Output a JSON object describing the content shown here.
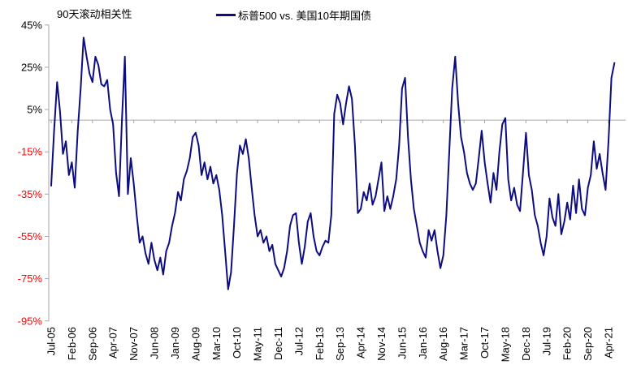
{
  "page": {
    "background": "#ffffff"
  },
  "chart_data": {
    "type": "line",
    "title": "90天滚动相关性",
    "legend": {
      "position": "top",
      "entries": [
        {
          "label": "标普500 vs. 美国10年期国债",
          "marker": "line",
          "color": "#0d0d80"
        }
      ]
    },
    "grid": "zero-line-only",
    "ylim": [
      -95,
      45
    ],
    "yticks": [
      45,
      25,
      5,
      -15,
      -35,
      -55,
      -75,
      -95
    ],
    "ytick_suffix": "%",
    "x_axis": {
      "start_month": "2005-07",
      "end_month": "2021-06",
      "frequency": "monthly",
      "tick_interval_months": 7,
      "tick_labels": [
        "Jul-05",
        "Feb-06",
        "Sep-06",
        "Apr-07",
        "Nov-07",
        "Jun-08",
        "Jan-09",
        "Aug-09",
        "Mar-10",
        "Oct-10",
        "May-11",
        "Dec-11",
        "Jul-12",
        "Feb-13",
        "Sep-13",
        "Apr-14",
        "Nov-14",
        "Jun-15",
        "Jan-16",
        "Aug-16",
        "Mar-17",
        "Oct-17",
        "May-18",
        "Dec-18",
        "Jul-19",
        "Feb-20",
        "Sep-20",
        "Apr-21"
      ]
    },
    "colors": {
      "line": "#0d0d80",
      "axis": "#a6a6a6",
      "positive_tick_label": "#000000",
      "negative_tick_label": "#ff0000",
      "x_tick_label": "#000000"
    },
    "series": [
      {
        "name": "标普500 vs. 美国10年期国债",
        "color": "#0d0d80",
        "unit": "percent",
        "values": [
          -31,
          -5,
          18,
          4,
          -16,
          -10,
          -26,
          -20,
          -32,
          -5,
          15,
          39,
          30,
          22,
          18,
          30,
          26,
          17,
          16,
          19,
          5,
          -2,
          -25,
          -36,
          0,
          30,
          -35,
          -18,
          -30,
          -45,
          -58,
          -55,
          -63,
          -68,
          -58,
          -66,
          -71,
          -65,
          -73,
          -62,
          -58,
          -50,
          -44,
          -34,
          -38,
          -28,
          -24,
          -18,
          -8,
          -6,
          -12,
          -26,
          -20,
          -28,
          -22,
          -30,
          -26,
          -33,
          -45,
          -62,
          -80,
          -72,
          -50,
          -25,
          -12,
          -16,
          -9,
          -18,
          -32,
          -45,
          -55,
          -52,
          -58,
          -55,
          -62,
          -59,
          -68,
          -71,
          -74,
          -70,
          -62,
          -50,
          -45,
          -44,
          -58,
          -68,
          -60,
          -48,
          -44,
          -55,
          -62,
          -64,
          -60,
          -57,
          -58,
          -45,
          3,
          12,
          8,
          -2,
          8,
          16,
          10,
          -12,
          -44,
          -42,
          -34,
          -38,
          -30,
          -40,
          -36,
          -28,
          -20,
          -43,
          -36,
          -42,
          -36,
          -28,
          -12,
          15,
          20,
          -8,
          -28,
          -42,
          -50,
          -58,
          -62,
          -65,
          -52,
          -57,
          -52,
          -62,
          -70,
          -64,
          -45,
          -15,
          15,
          30,
          8,
          -8,
          -15,
          -25,
          -30,
          -33,
          -30,
          -18,
          -5,
          -20,
          -30,
          -39,
          -25,
          -33,
          -15,
          -2,
          1,
          -28,
          -38,
          -32,
          -40,
          -43,
          -25,
          -6,
          -26,
          -33,
          -45,
          -50,
          -58,
          -64,
          -55,
          -37,
          -46,
          -50,
          -35,
          -54,
          -48,
          -39,
          -47,
          -31,
          -44,
          -28,
          -42,
          -45,
          -32,
          -26,
          -10,
          -23,
          -16,
          -25,
          -33,
          -10,
          20,
          27
        ]
      }
    ]
  }
}
